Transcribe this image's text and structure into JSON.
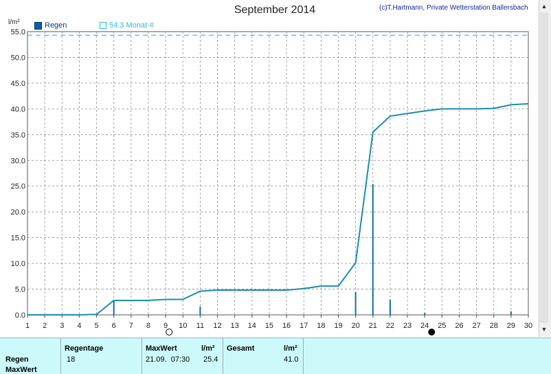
{
  "title": "September 2014",
  "credit": "(c)T.Hartmann, Private Wetterstation Ballersbach",
  "legend": {
    "series1": "Regen",
    "series2": "54.3 Monat-#"
  },
  "colors": {
    "line": "#1a8cb0",
    "bars": "#0a6ea8",
    "dashed": "#33c4e8",
    "grid": "#8a8a8a",
    "footer_bg": "#ccfafa"
  },
  "chart_data": {
    "type": "line",
    "ylabel": "l/m²",
    "xlim": [
      1,
      30
    ],
    "ylim": [
      0,
      55
    ],
    "y_ticks": [
      "0.0",
      "5.0",
      "10.0",
      "15.0",
      "20.0",
      "25.0",
      "30.0",
      "35.0",
      "40.0",
      "45.0",
      "50.0",
      "55.0"
    ],
    "x_ticks": [
      "1",
      "2",
      "3",
      "4",
      "5",
      "6",
      "7",
      "8",
      "9",
      "10",
      "11",
      "12",
      "13",
      "14",
      "15",
      "16",
      "17",
      "18",
      "19",
      "20",
      "21",
      "22",
      "23",
      "24",
      "25",
      "26",
      "27",
      "28",
      "29",
      "30"
    ],
    "reference_line": {
      "name": "54.3 Monat-#",
      "value": 54.3
    },
    "series": [
      {
        "name": "Regen",
        "kind": "cumulative-line",
        "x": [
          1,
          2,
          3,
          4,
          5,
          6,
          7,
          8,
          9,
          10,
          11,
          12,
          13,
          14,
          15,
          16,
          17,
          18,
          19,
          20,
          21,
          22,
          23,
          24,
          25,
          26,
          27,
          28,
          29,
          30
        ],
        "values": [
          0.0,
          0.0,
          0.0,
          0.0,
          0.1,
          2.8,
          2.8,
          2.8,
          3.0,
          3.0,
          4.6,
          4.8,
          4.8,
          4.8,
          4.8,
          4.8,
          5.1,
          5.6,
          5.6,
          10.1,
          35.5,
          38.6,
          39.1,
          39.6,
          40.0,
          40.0,
          40.0,
          40.1,
          40.8,
          41.0
        ]
      },
      {
        "name": "Regen",
        "kind": "daily-bars",
        "x": [
          6,
          11,
          20,
          21,
          22,
          24,
          29
        ],
        "values": [
          2.7,
          1.6,
          4.4,
          25.4,
          3.0,
          0.4,
          0.7
        ]
      }
    ],
    "moon_phases": [
      {
        "x": 9.2,
        "phase": "full"
      },
      {
        "x": 24.4,
        "phase": "new"
      }
    ],
    "grid": true
  },
  "footer": {
    "row_label_1": "Regen",
    "row_label_2": "MaxWert",
    "regentage_header": "Regentage",
    "regentage_value": "18",
    "maxwert_header": "MaxWert",
    "maxwert_unit": "l/m²",
    "maxwert_date": "21.09.  07:30",
    "maxwert_value": "25.4",
    "gesamt_header": "Gesamt",
    "gesamt_unit": "l/m²",
    "gesamt_value": "41.0"
  },
  "scroll": {
    "up": "▲",
    "down": "▼"
  }
}
